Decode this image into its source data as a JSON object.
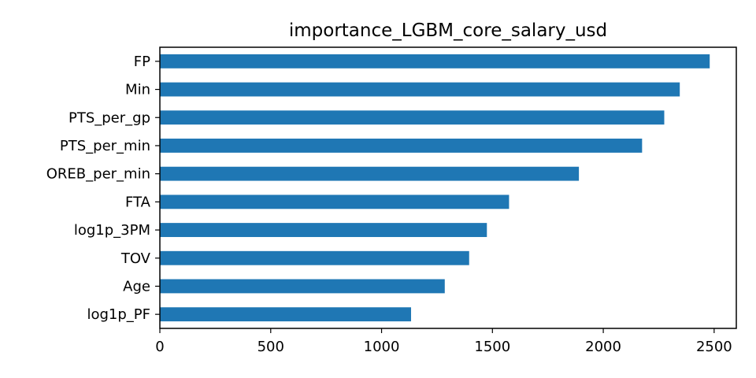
{
  "chart_data": {
    "type": "bar",
    "orientation": "horizontal",
    "title": "importance_LGBM_core_salary_usd",
    "xlabel": "",
    "ylabel": "",
    "categories": [
      "log1p_PF",
      "Age",
      "TOV",
      "log1p_3PM",
      "FTA",
      "OREB_per_min",
      "PTS_per_min",
      "PTS_per_gp",
      "Min",
      "FP"
    ],
    "values": [
      1133,
      1285,
      1395,
      1475,
      1575,
      1890,
      2175,
      2275,
      2345,
      2480
    ],
    "xlim": [
      0,
      2600
    ],
    "xticks": [
      0,
      500,
      1000,
      1500,
      2000,
      2500
    ],
    "grid": false,
    "legend": "none",
    "bar_color": "#1f77b4"
  }
}
